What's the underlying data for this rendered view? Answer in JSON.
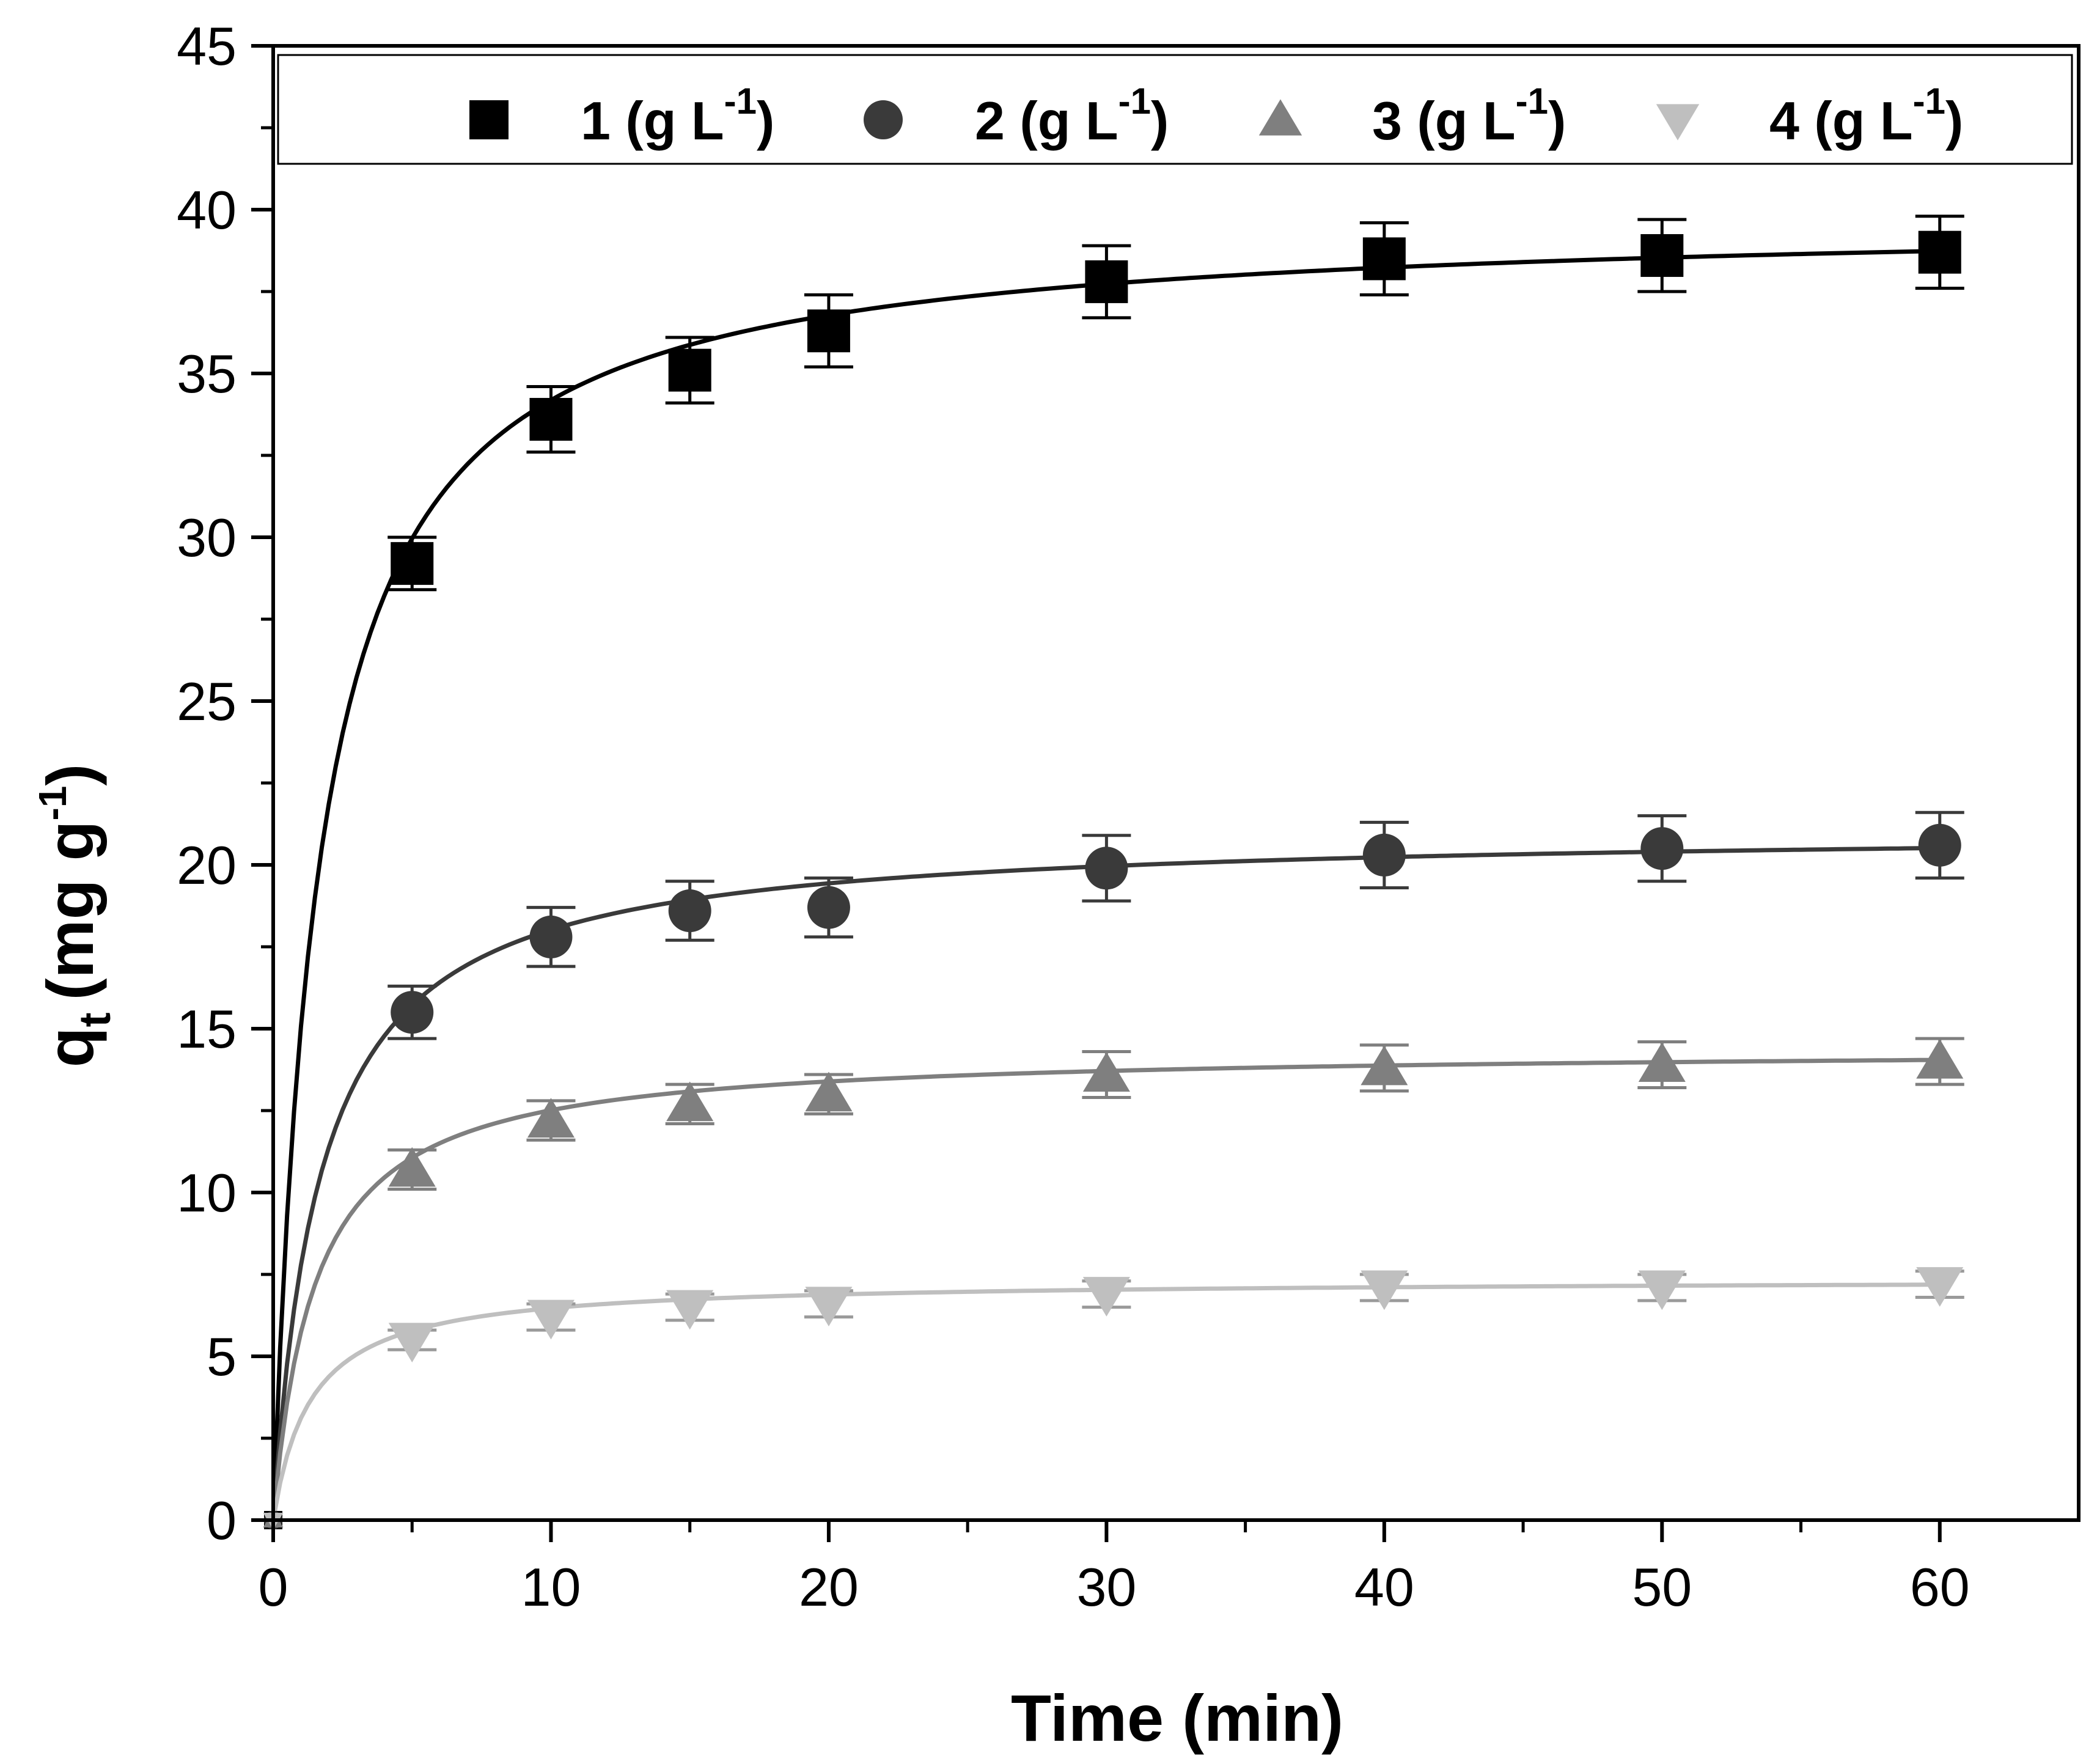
{
  "chart_data": {
    "type": "scatter",
    "title": "",
    "xlabel": "Time (min)",
    "ylabel": {
      "main": "q",
      "sub": "t",
      "unit": "(mg g",
      "sup": "-1",
      "close": ")"
    },
    "xlim": [
      0,
      65
    ],
    "ylim": [
      0,
      45
    ],
    "xticks": [
      0,
      10,
      20,
      30,
      40,
      50,
      60
    ],
    "yticks": [
      0,
      5,
      10,
      15,
      20,
      25,
      30,
      35,
      40,
      45
    ],
    "grid": false,
    "legend_position": "top",
    "x": [
      0,
      5,
      10,
      15,
      20,
      30,
      40,
      50,
      60
    ],
    "series": [
      {
        "name": "1 (g L-1)",
        "label": {
          "prefix": "1 (g L",
          "sup": "-1",
          "suffix": ")"
        },
        "marker": "square",
        "color": "#000000",
        "values": [
          0,
          29.2,
          33.6,
          35.1,
          36.3,
          37.8,
          38.5,
          38.6,
          38.7
        ],
        "errors": [
          0,
          0.8,
          1.0,
          1.0,
          1.1,
          1.1,
          1.1,
          1.1,
          1.1
        ],
        "fit": {
          "qe": 39.8,
          "k": 0.0153
        }
      },
      {
        "name": "2 (g L-1)",
        "label": {
          "prefix": "2 (g L",
          "sup": "-1",
          "suffix": ")"
        },
        "marker": "circle",
        "color": "#3a3a3a",
        "values": [
          0,
          15.5,
          17.8,
          18.6,
          18.7,
          19.9,
          20.3,
          20.5,
          20.6
        ],
        "errors": [
          0,
          0.8,
          0.9,
          0.9,
          0.9,
          1.0,
          1.0,
          1.0,
          1.0
        ],
        "fit": {
          "qe": 21.1,
          "k": 0.0277
        }
      },
      {
        "name": "3 (g L-1)",
        "label": {
          "prefix": "3 (g L",
          "sup": "-1",
          "suffix": ")"
        },
        "marker": "triangle-up",
        "color": "#7f7f7f",
        "values": [
          0,
          10.7,
          12.2,
          12.7,
          13.0,
          13.6,
          13.8,
          13.9,
          14.0
        ],
        "errors": [
          0,
          0.6,
          0.6,
          0.6,
          0.6,
          0.7,
          0.7,
          0.7,
          0.7
        ],
        "fit": {
          "qe": 14.4,
          "k": 0.046
        }
      },
      {
        "name": "4 (g L-1)",
        "label": {
          "prefix": "4 (g L",
          "sup": "-1",
          "suffix": ")"
        },
        "marker": "triangle-down",
        "color": "#bfbfbf",
        "values": [
          0,
          5.5,
          6.2,
          6.5,
          6.6,
          6.9,
          7.1,
          7.1,
          7.2
        ],
        "errors": [
          0,
          0.3,
          0.4,
          0.4,
          0.4,
          0.4,
          0.4,
          0.4,
          0.4
        ],
        "fit": {
          "qe": 7.35,
          "k": 0.1
        }
      }
    ]
  }
}
